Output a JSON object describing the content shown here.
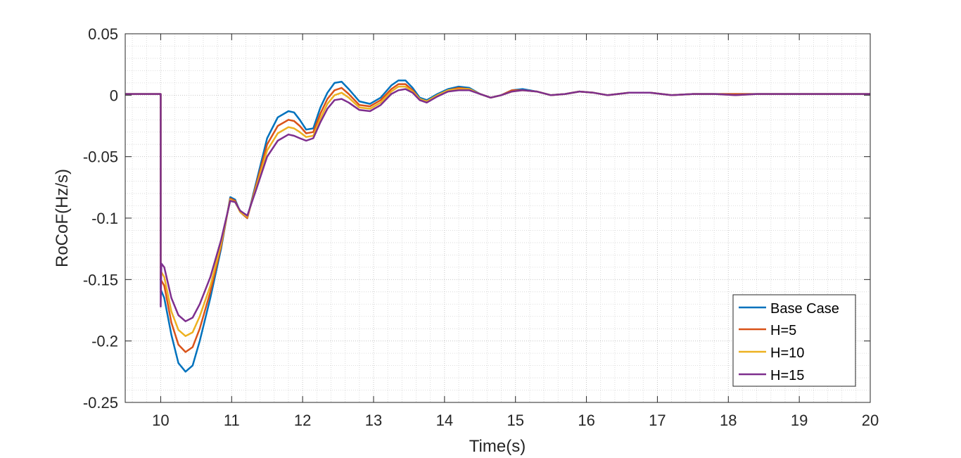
{
  "chart_data": {
    "type": "line",
    "xlabel": "Time(s)",
    "ylabel": "RoCoF(Hz/s)",
    "xlim": [
      9.5,
      20
    ],
    "ylim": [
      -0.25,
      0.05
    ],
    "xticks": [
      10,
      11,
      12,
      13,
      14,
      15,
      16,
      17,
      18,
      19,
      20
    ],
    "xtick_labels": [
      "10",
      "11",
      "12",
      "13",
      "14",
      "15",
      "16",
      "17",
      "18",
      "19",
      "20"
    ],
    "yticks": [
      0.05,
      0,
      -0.05,
      -0.1,
      -0.15,
      -0.2,
      -0.25
    ],
    "ytick_labels": [
      "0.05",
      "0",
      "-0.05",
      "-0.1",
      "-0.15",
      "-0.2",
      "-0.25"
    ],
    "grid": true,
    "minor_grid": true,
    "legend_position": "bottom-right",
    "series": [
      {
        "name": "Base Case",
        "color": "#0072BD",
        "x": [
          9.5,
          10.0,
          10.0,
          10.05,
          10.15,
          10.25,
          10.35,
          10.45,
          10.55,
          10.7,
          10.85,
          10.98,
          11.05,
          11.12,
          11.22,
          11.35,
          11.5,
          11.65,
          11.8,
          11.88,
          11.96,
          12.05,
          12.15,
          12.25,
          12.35,
          12.45,
          12.55,
          12.65,
          12.8,
          12.95,
          13.1,
          13.25,
          13.35,
          13.45,
          13.55,
          13.65,
          13.75,
          13.9,
          14.05,
          14.2,
          14.35,
          14.5,
          14.65,
          14.8,
          14.95,
          15.1,
          15.3,
          15.5,
          15.7,
          15.9,
          16.1,
          16.3,
          16.6,
          16.9,
          17.2,
          17.5,
          17.8,
          18.1,
          18.4,
          18.7,
          19.0,
          19.3,
          19.6,
          20.0
        ],
        "y": [
          0.001,
          0.001,
          -0.158,
          -0.165,
          -0.195,
          -0.218,
          -0.225,
          -0.22,
          -0.2,
          -0.165,
          -0.125,
          -0.083,
          -0.085,
          -0.095,
          -0.1,
          -0.07,
          -0.035,
          -0.018,
          -0.013,
          -0.014,
          -0.02,
          -0.028,
          -0.027,
          -0.01,
          0.002,
          0.01,
          0.011,
          0.005,
          -0.005,
          -0.007,
          -0.002,
          0.008,
          0.012,
          0.012,
          0.006,
          -0.002,
          -0.004,
          0.001,
          0.005,
          0.007,
          0.006,
          0.001,
          -0.002,
          0.0,
          0.004,
          0.005,
          0.003,
          0.0,
          0.001,
          0.003,
          0.002,
          0.0,
          0.002,
          0.002,
          0.0,
          0.001,
          0.001,
          0.001,
          0.001,
          0.001,
          0.001,
          0.001,
          0.001,
          0.001
        ]
      },
      {
        "name": "H=5",
        "color": "#D95319",
        "x": [
          9.5,
          10.0,
          10.0,
          10.05,
          10.15,
          10.25,
          10.35,
          10.45,
          10.55,
          10.7,
          10.85,
          10.98,
          11.05,
          11.12,
          11.22,
          11.35,
          11.5,
          11.65,
          11.8,
          11.88,
          11.96,
          12.05,
          12.15,
          12.25,
          12.35,
          12.45,
          12.55,
          12.65,
          12.8,
          12.95,
          13.1,
          13.25,
          13.35,
          13.45,
          13.55,
          13.65,
          13.75,
          13.9,
          14.05,
          14.2,
          14.35,
          14.5,
          14.65,
          14.8,
          14.95,
          15.1,
          15.3,
          15.5,
          15.7,
          15.9,
          16.1,
          16.3,
          16.6,
          16.9,
          17.2,
          17.5,
          17.8,
          18.1,
          18.4,
          18.7,
          19.0,
          19.3,
          19.6,
          20.0
        ],
        "y": [
          0.001,
          0.001,
          -0.15,
          -0.155,
          -0.185,
          -0.203,
          -0.209,
          -0.205,
          -0.19,
          -0.16,
          -0.123,
          -0.084,
          -0.086,
          -0.095,
          -0.1,
          -0.072,
          -0.04,
          -0.025,
          -0.02,
          -0.021,
          -0.025,
          -0.031,
          -0.03,
          -0.015,
          -0.003,
          0.004,
          0.006,
          0.001,
          -0.008,
          -0.009,
          -0.004,
          0.005,
          0.009,
          0.009,
          0.004,
          -0.003,
          -0.005,
          0.0,
          0.004,
          0.006,
          0.005,
          0.001,
          -0.002,
          0.0,
          0.004,
          0.004,
          0.003,
          0.0,
          0.001,
          0.003,
          0.002,
          0.0,
          0.002,
          0.002,
          0.0,
          0.001,
          0.001,
          0.001,
          0.001,
          0.001,
          0.001,
          0.001,
          0.001,
          0.001
        ]
      },
      {
        "name": "H=10",
        "color": "#EDB120",
        "x": [
          9.5,
          10.0,
          10.0,
          10.05,
          10.15,
          10.25,
          10.35,
          10.45,
          10.55,
          10.7,
          10.85,
          10.98,
          11.05,
          11.12,
          11.22,
          11.35,
          11.5,
          11.65,
          11.8,
          11.88,
          11.96,
          12.05,
          12.15,
          12.25,
          12.35,
          12.45,
          12.55,
          12.65,
          12.8,
          12.95,
          13.1,
          13.25,
          13.35,
          13.45,
          13.55,
          13.65,
          13.75,
          13.9,
          14.05,
          14.2,
          14.35,
          14.5,
          14.65,
          14.8,
          14.95,
          15.1,
          15.3,
          15.5,
          15.7,
          15.9,
          16.1,
          16.3,
          16.6,
          16.9,
          17.2,
          17.5,
          17.8,
          18.1,
          18.4,
          18.7,
          19.0,
          19.3,
          19.6,
          20.0
        ],
        "y": [
          0.001,
          0.001,
          -0.143,
          -0.148,
          -0.176,
          -0.191,
          -0.196,
          -0.193,
          -0.18,
          -0.155,
          -0.121,
          -0.085,
          -0.087,
          -0.095,
          -0.099,
          -0.074,
          -0.045,
          -0.031,
          -0.026,
          -0.027,
          -0.03,
          -0.034,
          -0.033,
          -0.019,
          -0.007,
          0.0,
          0.002,
          -0.002,
          -0.01,
          -0.011,
          -0.006,
          0.003,
          0.007,
          0.007,
          0.003,
          -0.003,
          -0.005,
          0.0,
          0.004,
          0.005,
          0.005,
          0.001,
          -0.002,
          0.0,
          0.003,
          0.004,
          0.003,
          0.0,
          0.001,
          0.003,
          0.002,
          0.0,
          0.002,
          0.002,
          0.0,
          0.001,
          0.001,
          0.0,
          0.001,
          0.001,
          0.001,
          0.001,
          0.001,
          0.001
        ]
      },
      {
        "name": "H=15",
        "color": "#7E2F8E",
        "x": [
          9.5,
          10.0,
          10.0,
          10.01,
          10.05,
          10.15,
          10.25,
          10.35,
          10.45,
          10.55,
          10.7,
          10.85,
          10.98,
          11.05,
          11.12,
          11.22,
          11.35,
          11.5,
          11.65,
          11.8,
          11.88,
          11.96,
          12.05,
          12.15,
          12.25,
          12.35,
          12.45,
          12.55,
          12.65,
          12.8,
          12.95,
          13.1,
          13.25,
          13.35,
          13.45,
          13.55,
          13.65,
          13.75,
          13.9,
          14.05,
          14.2,
          14.35,
          14.5,
          14.65,
          14.8,
          14.95,
          15.1,
          15.3,
          15.5,
          15.7,
          15.9,
          16.1,
          16.3,
          16.6,
          16.9,
          17.2,
          17.5,
          17.8,
          18.1,
          18.4,
          18.7,
          19.0,
          19.3,
          19.6,
          20.0
        ],
        "y": [
          0.001,
          0.001,
          -0.172,
          -0.137,
          -0.14,
          -0.165,
          -0.179,
          -0.184,
          -0.181,
          -0.17,
          -0.148,
          -0.118,
          -0.086,
          -0.087,
          -0.094,
          -0.098,
          -0.076,
          -0.05,
          -0.037,
          -0.032,
          -0.033,
          -0.035,
          -0.037,
          -0.035,
          -0.022,
          -0.011,
          -0.004,
          -0.003,
          -0.006,
          -0.012,
          -0.013,
          -0.008,
          0.001,
          0.004,
          0.005,
          0.002,
          -0.004,
          -0.006,
          -0.001,
          0.003,
          0.004,
          0.004,
          0.001,
          -0.002,
          0.0,
          0.003,
          0.004,
          0.003,
          0.0,
          0.001,
          0.003,
          0.002,
          0.0,
          0.002,
          0.002,
          0.0,
          0.001,
          0.001,
          0.0,
          0.001,
          0.001,
          0.001,
          0.001,
          0.001,
          0.001
        ]
      }
    ]
  }
}
